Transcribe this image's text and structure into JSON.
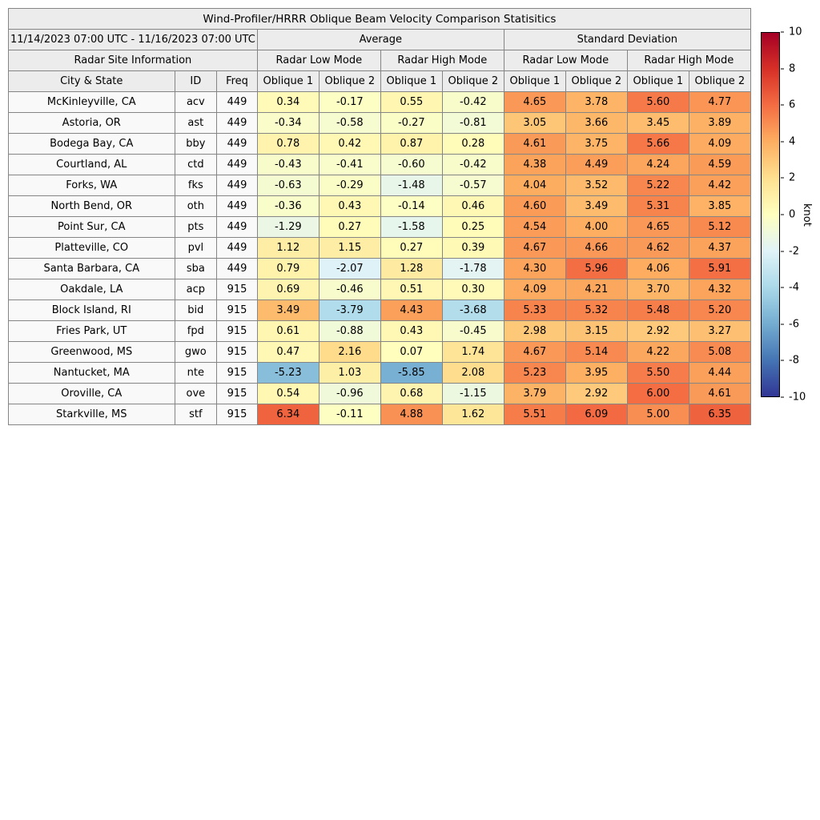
{
  "chart_data": {
    "type": "heatmap",
    "title": "Wind-Profiler/HRRR Oblique Beam Velocity Comparison Statisitics",
    "date_range": "11/14/2023 07:00 UTC - 11/16/2023 07:00 UTC",
    "site_info_header": "Radar Site Information",
    "group_headers": [
      "Average",
      "Standard Deviation"
    ],
    "mode_headers": [
      "Radar Low Mode",
      "Radar High Mode",
      "Radar Low Mode",
      "Radar High Mode"
    ],
    "col_headers": [
      "City & State",
      "ID",
      "Freq",
      "Oblique 1",
      "Oblique 2",
      "Oblique 1",
      "Oblique 2",
      "Oblique 1",
      "Oblique 2",
      "Oblique 1",
      "Oblique 2"
    ],
    "rows": [
      {
        "city": "McKinleyville, CA",
        "id": "acv",
        "freq": "449",
        "values": [
          0.34,
          -0.17,
          0.55,
          -0.42,
          4.65,
          3.78,
          5.6,
          4.77
        ]
      },
      {
        "city": "Astoria, OR",
        "id": "ast",
        "freq": "449",
        "values": [
          -0.34,
          -0.58,
          -0.27,
          -0.81,
          3.05,
          3.66,
          3.45,
          3.89
        ]
      },
      {
        "city": "Bodega Bay, CA",
        "id": "bby",
        "freq": "449",
        "values": [
          0.78,
          0.42,
          0.87,
          0.28,
          4.61,
          3.75,
          5.66,
          4.09
        ]
      },
      {
        "city": "Courtland, AL",
        "id": "ctd",
        "freq": "449",
        "values": [
          -0.43,
          -0.41,
          -0.6,
          -0.42,
          4.38,
          4.49,
          4.24,
          4.59
        ]
      },
      {
        "city": "Forks, WA",
        "id": "fks",
        "freq": "449",
        "values": [
          -0.63,
          -0.29,
          -1.48,
          -0.57,
          4.04,
          3.52,
          5.22,
          4.42
        ]
      },
      {
        "city": "North Bend, OR",
        "id": "oth",
        "freq": "449",
        "values": [
          -0.36,
          0.43,
          -0.14,
          0.46,
          4.6,
          3.49,
          5.31,
          3.85
        ]
      },
      {
        "city": "Point Sur, CA",
        "id": "pts",
        "freq": "449",
        "values": [
          -1.29,
          0.27,
          -1.58,
          0.25,
          4.54,
          4.0,
          4.65,
          5.12
        ]
      },
      {
        "city": "Platteville, CO",
        "id": "pvl",
        "freq": "449",
        "values": [
          1.12,
          1.15,
          0.27,
          0.39,
          4.67,
          4.66,
          4.62,
          4.37
        ]
      },
      {
        "city": "Santa Barbara, CA",
        "id": "sba",
        "freq": "449",
        "values": [
          0.79,
          -2.07,
          1.28,
          -1.78,
          4.3,
          5.96,
          4.06,
          5.91
        ]
      },
      {
        "city": "Oakdale, LA",
        "id": "acp",
        "freq": "915",
        "values": [
          0.69,
          -0.46,
          0.51,
          0.3,
          4.09,
          4.21,
          3.7,
          4.32
        ]
      },
      {
        "city": "Block Island, RI",
        "id": "bid",
        "freq": "915",
        "values": [
          3.49,
          -3.79,
          4.43,
          -3.68,
          5.33,
          5.32,
          5.48,
          5.2
        ]
      },
      {
        "city": "Fries Park, UT",
        "id": "fpd",
        "freq": "915",
        "values": [
          0.61,
          -0.88,
          0.43,
          -0.45,
          2.98,
          3.15,
          2.92,
          3.27
        ]
      },
      {
        "city": "Greenwood, MS",
        "id": "gwo",
        "freq": "915",
        "values": [
          0.47,
          2.16,
          0.07,
          1.74,
          4.67,
          5.14,
          4.22,
          5.08
        ]
      },
      {
        "city": "Nantucket, MA",
        "id": "nte",
        "freq": "915",
        "values": [
          -5.23,
          1.03,
          -5.85,
          2.08,
          5.23,
          3.95,
          5.5,
          4.44
        ]
      },
      {
        "city": "Oroville, CA",
        "id": "ove",
        "freq": "915",
        "values": [
          0.54,
          -0.96,
          0.68,
          -1.15,
          3.79,
          2.92,
          6.0,
          4.61
        ]
      },
      {
        "city": "Starkville, MS",
        "id": "stf",
        "freq": "915",
        "values": [
          6.34,
          -0.11,
          4.88,
          1.62,
          5.51,
          6.09,
          5.0,
          6.35
        ]
      }
    ],
    "colorbar": {
      "label": "knot",
      "min": -10,
      "max": 10,
      "ticks": [
        10,
        8,
        6,
        4,
        2,
        0,
        -2,
        -4,
        -6,
        -8,
        -10
      ],
      "colormap": "RdYlBu_r",
      "anchors_low_to_high": [
        "#313695",
        "#4575b4",
        "#74add1",
        "#abd9e9",
        "#e0f3f8",
        "#ffffbf",
        "#fee090",
        "#fdae61",
        "#f46d43",
        "#d73027",
        "#a50026"
      ]
    }
  }
}
